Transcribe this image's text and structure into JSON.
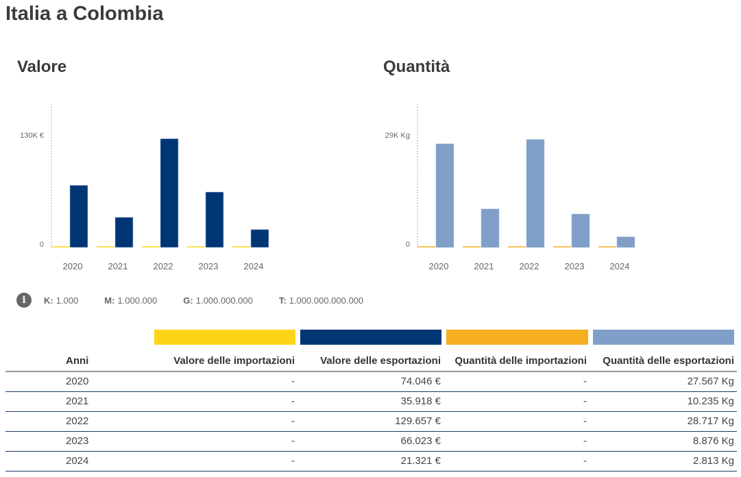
{
  "page": {
    "title": "Italia a Colombia"
  },
  "colors": {
    "import_value": "#fdd516",
    "export_value": "#003674",
    "import_quantity": "#f5ae1f",
    "export_quantity": "#7f9fc8"
  },
  "chart_data": [
    {
      "type": "bar",
      "title": "Valore",
      "categories": [
        "2020",
        "2021",
        "2022",
        "2023",
        "2024"
      ],
      "series": [
        {
          "name": "Valore delle importazioni",
          "values": [
            0,
            0,
            0,
            0,
            0
          ]
        },
        {
          "name": "Valore delle esportazioni",
          "values": [
            74046,
            35918,
            129657,
            66023,
            21321
          ]
        }
      ],
      "ytick_labels": [
        "0",
        "130K €"
      ],
      "yticks": [
        0,
        130000
      ],
      "ylim": [
        0,
        170000
      ],
      "xlabel": "",
      "ylabel": "",
      "grid": false
    },
    {
      "type": "bar",
      "title": "Quantità",
      "categories": [
        "2020",
        "2021",
        "2022",
        "2023",
        "2024"
      ],
      "series": [
        {
          "name": "Quantità delle importazioni",
          "values": [
            0,
            0,
            0,
            0,
            0
          ]
        },
        {
          "name": "Quantità delle esportazioni",
          "values": [
            27567,
            10235,
            28717,
            8876,
            2813
          ]
        }
      ],
      "ytick_labels": [
        "0",
        "29K Kg"
      ],
      "yticks": [
        0,
        29000
      ],
      "ylim": [
        0,
        38000
      ],
      "xlabel": "",
      "ylabel": "",
      "grid": false
    }
  ],
  "units_note": {
    "icon": "info-icon",
    "items": [
      {
        "key": "K:",
        "value": "1.000"
      },
      {
        "key": "M:",
        "value": "1.000.000"
      },
      {
        "key": "G:",
        "value": "1.000.000.000"
      },
      {
        "key": "T:",
        "value": "1.000.000.000.000"
      }
    ]
  },
  "table": {
    "headers": [
      "Anni",
      "Valore delle importazioni",
      "Valore delle esportazioni",
      "Quantità delle importazioni",
      "Quantità delle esportazioni"
    ],
    "rows": [
      [
        "2020",
        "-",
        "74.046 €",
        "-",
        "27.567 Kg"
      ],
      [
        "2021",
        "-",
        "35.918 €",
        "-",
        "10.235 Kg"
      ],
      [
        "2022",
        "-",
        "129.657 €",
        "-",
        "28.717 Kg"
      ],
      [
        "2023",
        "-",
        "66.023 €",
        "-",
        "8.876 Kg"
      ],
      [
        "2024",
        "-",
        "21.321 €",
        "-",
        "2.813 Kg"
      ]
    ]
  }
}
